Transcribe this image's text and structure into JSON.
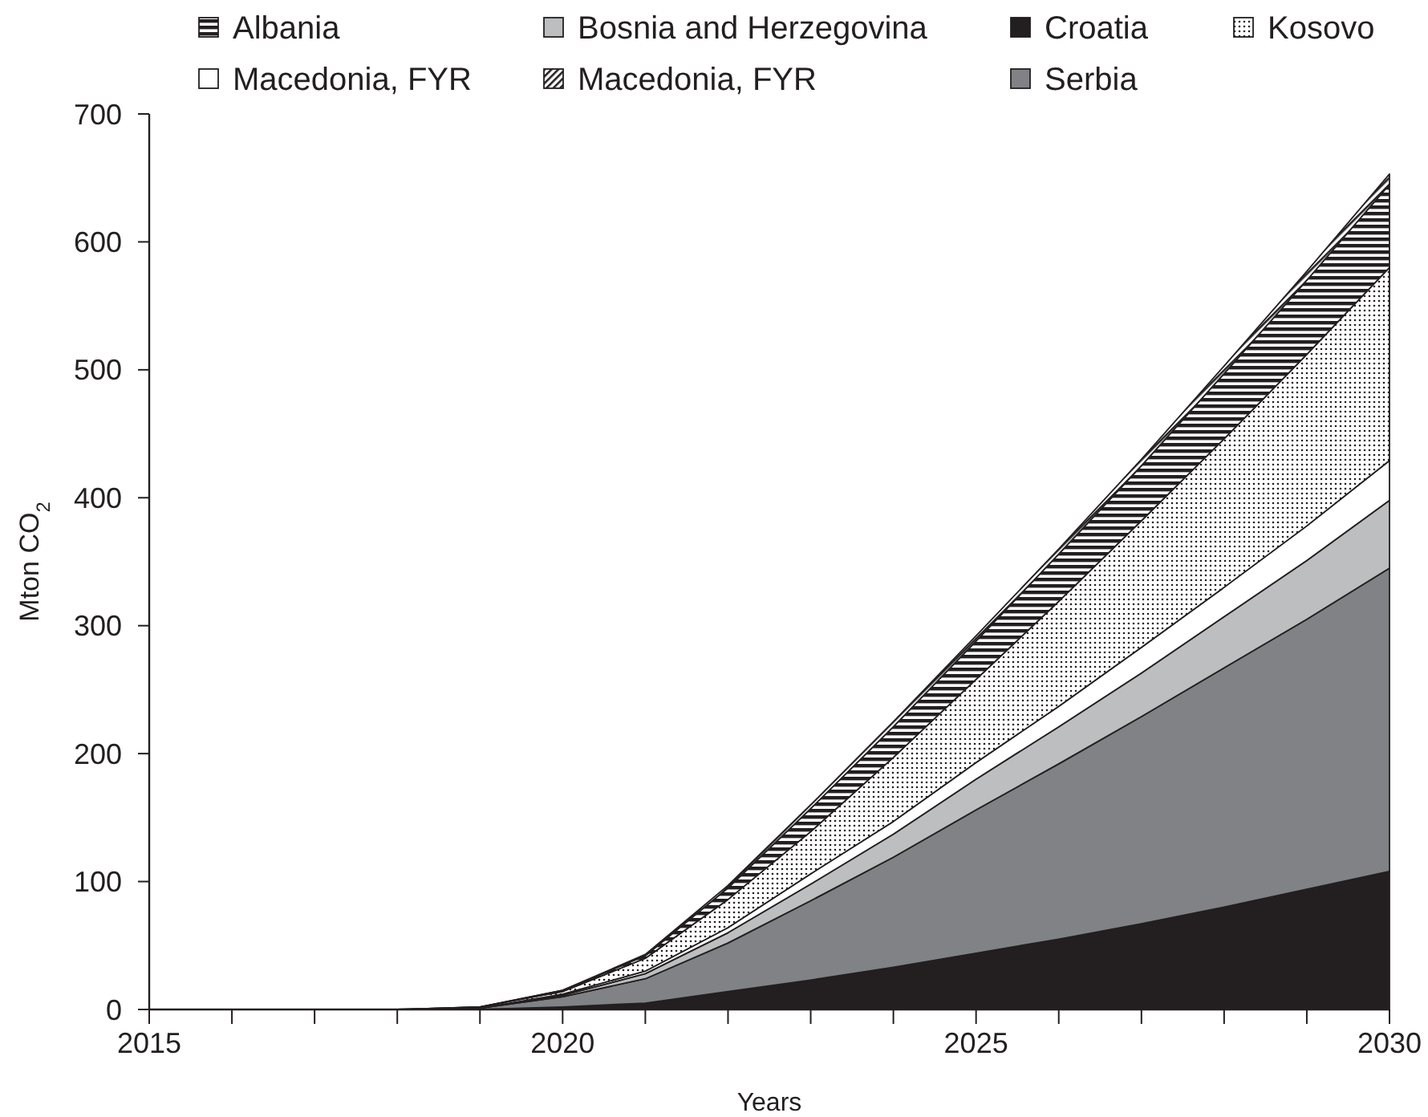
{
  "chart_data": {
    "type": "area",
    "stacked": true,
    "xlabel": "Years",
    "ylabel": "Mton CO$_{2}$",
    "x": [
      2015,
      2016,
      2017,
      2018,
      2019,
      2020,
      2021,
      2022,
      2023,
      2024,
      2025,
      2026,
      2027,
      2028,
      2029,
      2030
    ],
    "xlim": [
      2015,
      2030
    ],
    "xticks": [
      2015,
      {
        "value": 2016,
        "label": null
      },
      {
        "value": 2017,
        "label": null
      },
      {
        "value": 2018,
        "label": null
      },
      {
        "value": 2019,
        "label": null
      },
      2020,
      {
        "value": 2021,
        "label": null
      },
      {
        "value": 2022,
        "label": null
      },
      {
        "value": 2023,
        "label": null
      },
      {
        "value": 2024,
        "label": null
      },
      2025,
      {
        "value": 2026,
        "label": null
      },
      {
        "value": 2027,
        "label": null
      },
      {
        "value": 2028,
        "label": null
      },
      {
        "value": 2029,
        "label": null
      },
      2030
    ],
    "ylim": [
      0,
      700
    ],
    "yticks": [
      0,
      100,
      200,
      300,
      400,
      500,
      600,
      700
    ],
    "legend": "top",
    "series": [
      {
        "name": "Croatia",
        "color": "#231f20",
        "values": [
          0,
          0,
          0,
          0,
          0,
          2,
          5,
          14,
          23,
          33,
          44,
          55,
          67,
          80,
          94,
          108
        ]
      },
      {
        "name": "Serbia",
        "color": "#808285",
        "values": [
          0,
          0,
          0,
          0,
          1,
          8,
          19,
          38,
          62,
          86,
          112,
          137,
          162,
          187,
          211,
          237
        ]
      },
      {
        "name": "Bosnia and Herzegovina",
        "color": "#bcbec0",
        "values": [
          0,
          0,
          0,
          0,
          0,
          1,
          4,
          8,
          13,
          18,
          24,
          29,
          34,
          40,
          46,
          53
        ]
      },
      {
        "name": "Macedonia, FYR",
        "color": "#ffffff",
        "values": [
          0,
          0,
          0,
          0,
          0,
          1,
          2,
          4,
          8,
          10,
          13,
          16,
          20,
          23,
          27,
          31
        ]
      },
      {
        "name": "Kosovo",
        "color": "#231f20",
        "values": [
          0,
          0,
          0,
          0,
          1,
          2,
          10,
          22,
          33,
          50,
          65,
          82,
          99,
          116,
          134,
          151
        ]
      },
      {
        "name": "Albania",
        "color": "#231f20",
        "values": [
          0,
          0,
          0,
          0,
          0,
          1,
          2,
          9,
          18,
          24,
          30,
          37,
          43,
          51,
          58,
          65
        ]
      },
      {
        "name": "Macedonia, FYR",
        "color": "#231f20",
        "values": [
          0,
          0,
          0,
          0,
          0,
          0,
          1,
          2,
          3,
          4,
          4,
          4,
          5,
          6,
          7,
          8
        ]
      }
    ]
  }
}
